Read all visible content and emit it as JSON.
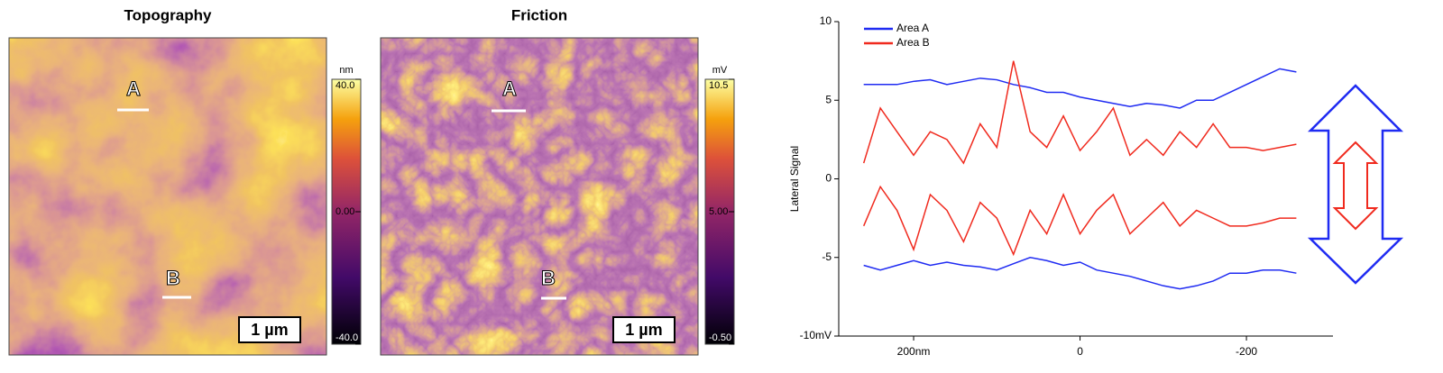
{
  "chart_data": [
    {
      "type": "image",
      "title": "Topography",
      "colorbar_unit": "nm",
      "colorbar_lim": [
        -40,
        40
      ],
      "colorbar_ticks": [
        {
          "value": 40,
          "label": "40.0"
        },
        {
          "value": 0,
          "label": "0.00"
        },
        {
          "value": -40,
          "label": "-40.0"
        }
      ],
      "markers": [
        "A",
        "B"
      ],
      "scale_bar": "1 µm"
    },
    {
      "type": "image",
      "title": "Friction",
      "colorbar_unit": "mV",
      "colorbar_lim": [
        -0.5,
        10.5
      ],
      "colorbar_ticks": [
        {
          "value": 10.5,
          "label": "10.5"
        },
        {
          "value": 5,
          "label": "5.00"
        },
        {
          "value": -0.5,
          "label": "-0.50"
        }
      ],
      "markers": [
        "A",
        "B"
      ],
      "scale_bar": "1 µm"
    },
    {
      "type": "line",
      "y_label": "Lateral Signal",
      "x": [
        260,
        240,
        220,
        200,
        180,
        160,
        140,
        120,
        100,
        80,
        60,
        40,
        20,
        0,
        -20,
        -40,
        -60,
        -80,
        -100,
        -120,
        -140,
        -160,
        -180,
        -200,
        -220,
        -240,
        -260
      ],
      "xlim": [
        290,
        -304
      ],
      "xticks": [
        {
          "value": 200,
          "label": "200nm"
        },
        0,
        -200
      ],
      "ylim": [
        -10,
        10
      ],
      "yticks": [
        10,
        5,
        0,
        -5,
        {
          "value": -10,
          "label": "-10mV"
        }
      ],
      "legend": "upper left",
      "series": [
        {
          "name": "Area A",
          "color": "#1f2bf2",
          "values": [
            6,
            6,
            6,
            6.2,
            6.3,
            6,
            6.2,
            6.4,
            6.3,
            6,
            5.8,
            5.5,
            5.5,
            5.2,
            5,
            4.8,
            4.6,
            4.8,
            4.7,
            4.5,
            5,
            5,
            5.5,
            6,
            6.5,
            7,
            6.8
          ],
          "retrace": [
            -5.5,
            -5.8,
            -5.5,
            -5.2,
            -5.5,
            -5.3,
            -5.5,
            -5.6,
            -5.8,
            -5.4,
            -5,
            -5.2,
            -5.5,
            -5.3,
            -5.8,
            -6,
            -6.2,
            -6.5,
            -6.8,
            -7,
            -6.8,
            -6.5,
            -6,
            -6,
            -5.8,
            -5.8,
            -6
          ]
        },
        {
          "name": "Area B",
          "color": "#f02a1e",
          "values": [
            1,
            4.5,
            3,
            1.5,
            3,
            2.5,
            1,
            3.5,
            2,
            7.5,
            3,
            2,
            4,
            1.8,
            3,
            4.5,
            1.5,
            2.5,
            1.5,
            3,
            2,
            3.5,
            2,
            2,
            1.8,
            2,
            2.2
          ],
          "retrace": [
            -3,
            -0.5,
            -2,
            -4.5,
            -1,
            -2,
            -4,
            -1.5,
            -2.5,
            -4.8,
            -2,
            -3.5,
            -1,
            -3.5,
            -2,
            -1,
            -3.5,
            -2.5,
            -1.5,
            -3,
            -2,
            -2.5,
            -3,
            -3,
            -2.8,
            -2.5,
            -2.5
          ]
        }
      ]
    }
  ]
}
